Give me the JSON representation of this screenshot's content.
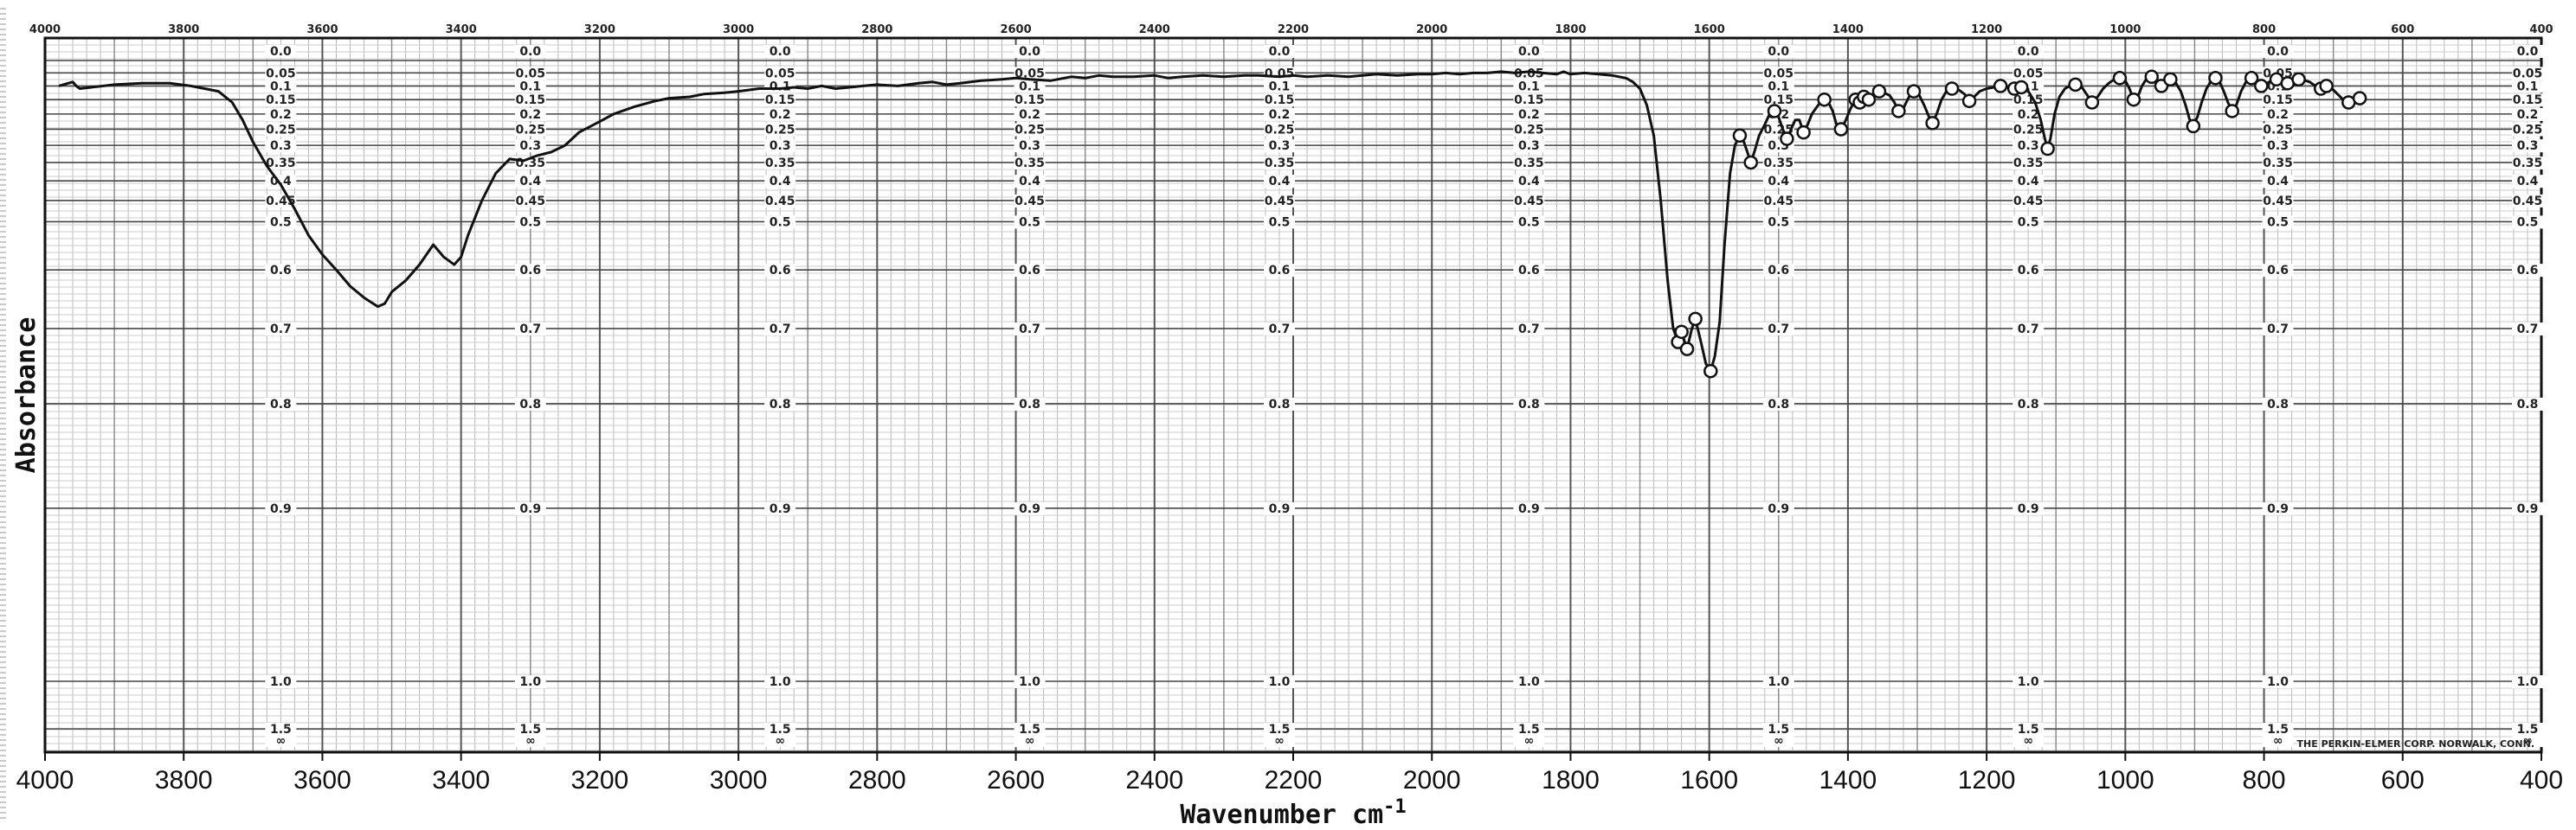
{
  "chart_data": {
    "type": "line",
    "title": "",
    "xlabel_main": "Wavenumber cm",
    "xlabel_superscript": "-1",
    "ylabel": "Absorbance",
    "x_reversed": true,
    "xlim": [
      4000,
      400
    ],
    "bottom_ticks": [
      "4000",
      "3800",
      "3600",
      "3400",
      "3200",
      "3000",
      "2800",
      "2600",
      "2400",
      "2200",
      "2000",
      "1800",
      "1600",
      "1400",
      "1200",
      "1000",
      "800",
      "600",
      "400"
    ],
    "top_ticks": [
      "4000",
      "3800",
      "3600",
      "3400",
      "3200",
      "3000",
      "2800",
      "2600",
      "2400",
      "2200",
      "2000",
      "1800",
      "1600",
      "1400",
      "1200",
      "1000",
      "800",
      "600",
      "400"
    ],
    "absorbance_ticks": [
      0.0,
      0.05,
      0.1,
      0.15,
      0.2,
      0.25,
      0.3,
      0.35,
      0.4,
      0.45,
      0.5,
      0.6,
      0.7,
      0.8,
      0.9,
      1.0,
      1.5
    ],
    "absorbance_labels": [
      "0.0",
      "0.05",
      "0.1",
      "0.15",
      "0.2",
      "0.25",
      "0.3",
      "0.35",
      "0.4",
      "0.45",
      "0.5",
      "0.6",
      "0.7",
      "0.8",
      "0.9",
      "1.0",
      "1.5",
      "∞"
    ],
    "manufacturer": "THE PERKIN-ELMER CORP. NORWALK, CONN.",
    "series": [
      {
        "points": [
          [
            3980,
            0.1
          ],
          [
            3960,
            0.085
          ],
          [
            3955,
            0.1
          ],
          [
            3950,
            0.11
          ],
          [
            3900,
            0.095
          ],
          [
            3860,
            0.09
          ],
          [
            3820,
            0.09
          ],
          [
            3790,
            0.1
          ],
          [
            3770,
            0.11
          ],
          [
            3750,
            0.12
          ],
          [
            3730,
            0.16
          ],
          [
            3715,
            0.22
          ],
          [
            3700,
            0.29
          ],
          [
            3680,
            0.36
          ],
          [
            3660,
            0.41
          ],
          [
            3640,
            0.47
          ],
          [
            3620,
            0.53
          ],
          [
            3600,
            0.57
          ],
          [
            3580,
            0.6
          ],
          [
            3560,
            0.63
          ],
          [
            3540,
            0.65
          ],
          [
            3520,
            0.665
          ],
          [
            3510,
            0.66
          ],
          [
            3500,
            0.64
          ],
          [
            3480,
            0.62
          ],
          [
            3460,
            0.59
          ],
          [
            3440,
            0.55
          ],
          [
            3425,
            0.575
          ],
          [
            3410,
            0.59
          ],
          [
            3400,
            0.575
          ],
          [
            3390,
            0.53
          ],
          [
            3370,
            0.45
          ],
          [
            3350,
            0.38
          ],
          [
            3330,
            0.34
          ],
          [
            3310,
            0.345
          ],
          [
            3290,
            0.33
          ],
          [
            3270,
            0.32
          ],
          [
            3250,
            0.3
          ],
          [
            3230,
            0.26
          ],
          [
            3200,
            0.225
          ],
          [
            3180,
            0.2
          ],
          [
            3150,
            0.175
          ],
          [
            3120,
            0.155
          ],
          [
            3100,
            0.145
          ],
          [
            3070,
            0.14
          ],
          [
            3050,
            0.13
          ],
          [
            3020,
            0.125
          ],
          [
            3000,
            0.12
          ],
          [
            2970,
            0.11
          ],
          [
            2940,
            0.11
          ],
          [
            2920,
            0.105
          ],
          [
            2900,
            0.11
          ],
          [
            2880,
            0.1
          ],
          [
            2860,
            0.11
          ],
          [
            2840,
            0.105
          ],
          [
            2820,
            0.1
          ],
          [
            2800,
            0.095
          ],
          [
            2770,
            0.1
          ],
          [
            2740,
            0.09
          ],
          [
            2720,
            0.085
          ],
          [
            2700,
            0.095
          ],
          [
            2680,
            0.09
          ],
          [
            2650,
            0.08
          ],
          [
            2620,
            0.075
          ],
          [
            2600,
            0.07
          ],
          [
            2580,
            0.075
          ],
          [
            2550,
            0.08
          ],
          [
            2520,
            0.065
          ],
          [
            2500,
            0.07
          ],
          [
            2480,
            0.06
          ],
          [
            2460,
            0.065
          ],
          [
            2430,
            0.065
          ],
          [
            2400,
            0.06
          ],
          [
            2380,
            0.07
          ],
          [
            2360,
            0.065
          ],
          [
            2330,
            0.06
          ],
          [
            2300,
            0.065
          ],
          [
            2270,
            0.06
          ],
          [
            2250,
            0.06
          ],
          [
            2220,
            0.065
          ],
          [
            2200,
            0.06
          ],
          [
            2180,
            0.065
          ],
          [
            2150,
            0.06
          ],
          [
            2120,
            0.065
          ],
          [
            2100,
            0.06
          ],
          [
            2080,
            0.055
          ],
          [
            2050,
            0.06
          ],
          [
            2020,
            0.055
          ],
          [
            2000,
            0.055
          ],
          [
            1980,
            0.05
          ],
          [
            1960,
            0.055
          ],
          [
            1940,
            0.05
          ],
          [
            1920,
            0.05
          ],
          [
            1900,
            0.045
          ],
          [
            1880,
            0.05
          ],
          [
            1860,
            0.045
          ],
          [
            1840,
            0.05
          ],
          [
            1820,
            0.055
          ],
          [
            1810,
            0.045
          ],
          [
            1800,
            0.055
          ],
          [
            1780,
            0.05
          ],
          [
            1760,
            0.055
          ],
          [
            1740,
            0.06
          ],
          [
            1720,
            0.07
          ],
          [
            1710,
            0.085
          ],
          [
            1700,
            0.11
          ],
          [
            1690,
            0.17
          ],
          [
            1680,
            0.27
          ],
          [
            1670,
            0.45
          ],
          [
            1660,
            0.62
          ],
          [
            1652,
            0.7
          ],
          [
            1645,
            0.72
          ],
          [
            1640,
            0.705
          ],
          [
            1632,
            0.73
          ],
          [
            1625,
            0.7
          ],
          [
            1620,
            0.685
          ],
          [
            1612,
            0.72
          ],
          [
            1605,
            0.75
          ],
          [
            1598,
            0.76
          ],
          [
            1592,
            0.74
          ],
          [
            1585,
            0.69
          ],
          [
            1578,
            0.55
          ],
          [
            1570,
            0.38
          ],
          [
            1563,
            0.3
          ],
          [
            1556,
            0.27
          ],
          [
            1550,
            0.29
          ],
          [
            1545,
            0.32
          ],
          [
            1540,
            0.35
          ],
          [
            1535,
            0.32
          ],
          [
            1528,
            0.27
          ],
          [
            1520,
            0.235
          ],
          [
            1513,
            0.2
          ],
          [
            1506,
            0.19
          ],
          [
            1500,
            0.21
          ],
          [
            1494,
            0.25
          ],
          [
            1488,
            0.28
          ],
          [
            1482,
            0.25
          ],
          [
            1476,
            0.22
          ],
          [
            1470,
            0.22
          ],
          [
            1464,
            0.26
          ],
          [
            1458,
            0.235
          ],
          [
            1452,
            0.2
          ],
          [
            1446,
            0.18
          ],
          [
            1440,
            0.16
          ],
          [
            1434,
            0.15
          ],
          [
            1428,
            0.16
          ],
          [
            1422,
            0.19
          ],
          [
            1416,
            0.24
          ],
          [
            1410,
            0.25
          ],
          [
            1403,
            0.22
          ],
          [
            1396,
            0.18
          ],
          [
            1389,
            0.15
          ],
          [
            1383,
            0.16
          ],
          [
            1377,
            0.14
          ],
          [
            1370,
            0.15
          ],
          [
            1363,
            0.14
          ],
          [
            1355,
            0.12
          ],
          [
            1348,
            0.125
          ],
          [
            1340,
            0.135
          ],
          [
            1333,
            0.16
          ],
          [
            1327,
            0.19
          ],
          [
            1320,
            0.18
          ],
          [
            1312,
            0.14
          ],
          [
            1305,
            0.12
          ],
          [
            1298,
            0.13
          ],
          [
            1290,
            0.17
          ],
          [
            1283,
            0.21
          ],
          [
            1278,
            0.23
          ],
          [
            1272,
            0.2
          ],
          [
            1265,
            0.15
          ],
          [
            1258,
            0.12
          ],
          [
            1250,
            0.11
          ],
          [
            1240,
            0.115
          ],
          [
            1232,
            0.13
          ],
          [
            1225,
            0.155
          ],
          [
            1218,
            0.14
          ],
          [
            1210,
            0.12
          ],
          [
            1200,
            0.11
          ],
          [
            1190,
            0.105
          ],
          [
            1180,
            0.1
          ],
          [
            1170,
            0.105
          ],
          [
            1160,
            0.11
          ],
          [
            1150,
            0.105
          ],
          [
            1140,
            0.12
          ],
          [
            1130,
            0.16
          ],
          [
            1122,
            0.22
          ],
          [
            1116,
            0.28
          ],
          [
            1112,
            0.31
          ],
          [
            1108,
            0.28
          ],
          [
            1102,
            0.2
          ],
          [
            1095,
            0.14
          ],
          [
            1087,
            0.11
          ],
          [
            1080,
            0.1
          ],
          [
            1072,
            0.095
          ],
          [
            1064,
            0.1
          ],
          [
            1056,
            0.13
          ],
          [
            1048,
            0.16
          ],
          [
            1040,
            0.14
          ],
          [
            1032,
            0.11
          ],
          [
            1024,
            0.09
          ],
          [
            1016,
            0.075
          ],
          [
            1008,
            0.07
          ],
          [
            1000,
            0.08
          ],
          [
            994,
            0.11
          ],
          [
            988,
            0.15
          ],
          [
            982,
            0.14
          ],
          [
            976,
            0.1
          ],
          [
            970,
            0.075
          ],
          [
            962,
            0.065
          ],
          [
            955,
            0.08
          ],
          [
            948,
            0.1
          ],
          [
            942,
            0.085
          ],
          [
            935,
            0.075
          ],
          [
            928,
            0.085
          ],
          [
            920,
            0.12
          ],
          [
            913,
            0.17
          ],
          [
            907,
            0.22
          ],
          [
            902,
            0.24
          ],
          [
            896,
            0.21
          ],
          [
            890,
            0.16
          ],
          [
            883,
            0.11
          ],
          [
            876,
            0.08
          ],
          [
            870,
            0.07
          ],
          [
            864,
            0.085
          ],
          [
            858,
            0.12
          ],
          [
            852,
            0.16
          ],
          [
            846,
            0.19
          ],
          [
            840,
            0.17
          ],
          [
            833,
            0.12
          ],
          [
            826,
            0.085
          ],
          [
            818,
            0.07
          ],
          [
            810,
            0.08
          ],
          [
            804,
            0.1
          ],
          [
            798,
            0.095
          ],
          [
            790,
            0.08
          ],
          [
            782,
            0.075
          ],
          [
            774,
            0.085
          ],
          [
            766,
            0.09
          ],
          [
            758,
            0.08
          ],
          [
            750,
            0.075
          ],
          [
            742,
            0.078
          ],
          [
            734,
            0.085
          ],
          [
            726,
            0.1
          ],
          [
            718,
            0.11
          ],
          [
            710,
            0.1
          ],
          [
            702,
            0.11
          ],
          [
            694,
            0.13
          ],
          [
            686,
            0.15
          ],
          [
            678,
            0.16
          ],
          [
            670,
            0.155
          ],
          [
            662,
            0.145
          ],
          [
            655,
            0.16
          ]
        ]
      }
    ]
  }
}
